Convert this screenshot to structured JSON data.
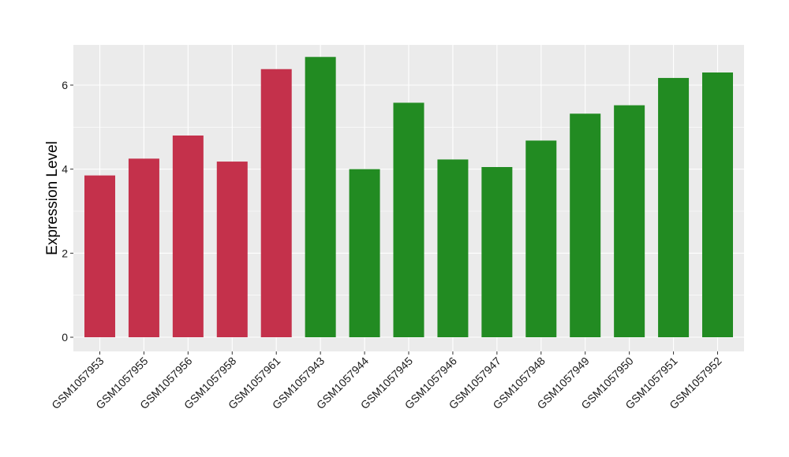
{
  "chart_data": {
    "type": "bar",
    "title": "",
    "xlabel": "",
    "ylabel": "Expression Level",
    "ylim": [
      0,
      7
    ],
    "yticks": [
      0,
      2,
      4,
      6
    ],
    "grid": true,
    "legend": "none",
    "categories": [
      "GSM1057953",
      "GSM1057955",
      "GSM1057956",
      "GSM1057958",
      "GSM1057961",
      "GSM1057943",
      "GSM1057944",
      "GSM1057945",
      "GSM1057946",
      "GSM1057947",
      "GSM1057948",
      "GSM1057949",
      "GSM1057950",
      "GSM1057951",
      "GSM1057952"
    ],
    "values": [
      3.85,
      4.25,
      4.8,
      4.18,
      6.38,
      6.67,
      4.0,
      5.58,
      4.23,
      4.05,
      4.68,
      5.32,
      5.52,
      6.17,
      6.3
    ],
    "groups": [
      "a",
      "a",
      "a",
      "a",
      "a",
      "b",
      "b",
      "b",
      "b",
      "b",
      "b",
      "b",
      "b",
      "b",
      "b"
    ],
    "group_colors": {
      "a": "#c4314b",
      "b": "#228b22"
    },
    "panel_color": "#ebebeb",
    "grid_color": "#ffffff"
  }
}
